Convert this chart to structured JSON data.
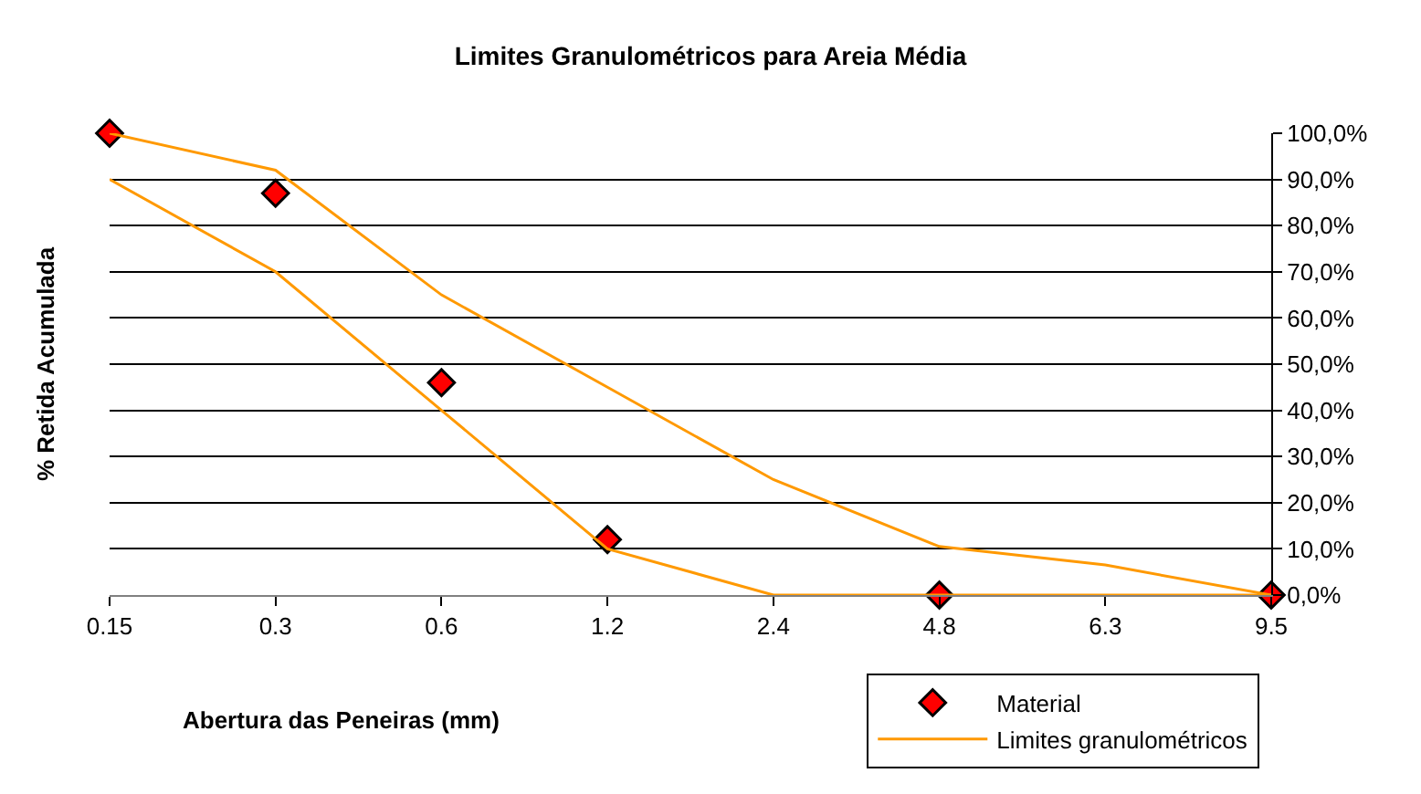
{
  "chart_data": {
    "type": "line",
    "title": "Limites Granulométricos para Areia Média",
    "xlabel": "Abertura das Peneiras (mm)",
    "ylabel": "% Retida Acumulada",
    "categories": [
      "0.15",
      "0.3",
      "0.6",
      "1.2",
      "2.4",
      "4.8",
      "6.3",
      "9.5"
    ],
    "series": [
      {
        "name": "Material",
        "type": "scatter",
        "marker": "diamond",
        "color": "#ff0000",
        "values": [
          100,
          87,
          46,
          12,
          null,
          0,
          null,
          0
        ]
      },
      {
        "name": "Limites granulométricos",
        "color": "#ff9900",
        "values": [
          90,
          70,
          40,
          10,
          0,
          0,
          0,
          0
        ]
      },
      {
        "color": "#ff9900",
        "values": [
          100,
          92,
          65,
          45,
          25,
          10.5,
          6.5,
          0
        ]
      }
    ],
    "ylim": [
      0,
      100
    ],
    "yticks": [
      {
        "value": 0,
        "label": "0,0%"
      },
      {
        "value": 10,
        "label": "10,0%"
      },
      {
        "value": 20,
        "label": "20,0%"
      },
      {
        "value": 30,
        "label": "30,0%"
      },
      {
        "value": 40,
        "label": "40,0%"
      },
      {
        "value": 50,
        "label": "50,0%"
      },
      {
        "value": 60,
        "label": "60,0%"
      },
      {
        "value": 70,
        "label": "70,0%"
      },
      {
        "value": 80,
        "label": "80,0%"
      },
      {
        "value": 90,
        "label": "90,0%"
      },
      {
        "value": 100,
        "label": "100,0%"
      }
    ],
    "grid": "y",
    "legend": "bottom right"
  }
}
